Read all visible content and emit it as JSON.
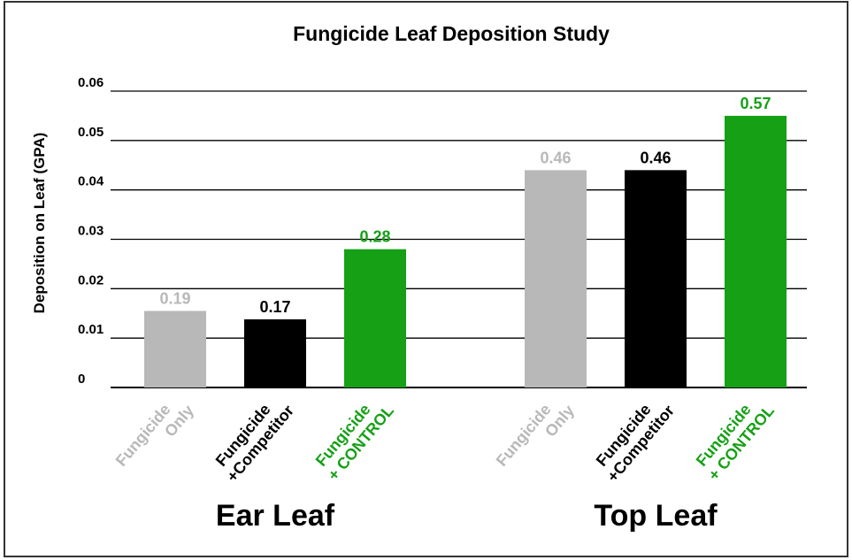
{
  "chart_data": {
    "type": "bar",
    "title": "Fungicide Leaf Deposition Study",
    "y_label": "Deposition on Leaf (GPA)",
    "categories": [
      "Ear Leaf",
      "Top Leaf"
    ],
    "series": [
      {
        "name_lines": [
          "Fungicide",
          "Only"
        ],
        "color": "#b8b8b8",
        "values": [
          0.0155,
          0.044
        ],
        "annotations": [
          "0.19",
          "0.46"
        ]
      },
      {
        "name_lines": [
          "Fungicide",
          "+Competitor"
        ],
        "color": "#000000",
        "values": [
          0.0138,
          0.044
        ],
        "annotations": [
          "0.17",
          "0.46"
        ]
      },
      {
        "name_lines": [
          "Fungicide",
          "+ CONTROL"
        ],
        "color": "#16a016",
        "values": [
          0.028,
          0.055
        ],
        "annotations": [
          "0.28",
          "0.57"
        ]
      }
    ],
    "ylim": [
      0,
      0.06
    ],
    "yticks": [
      0,
      0.01,
      0.02,
      0.03,
      0.04,
      0.05,
      0.06
    ],
    "grid": true
  }
}
